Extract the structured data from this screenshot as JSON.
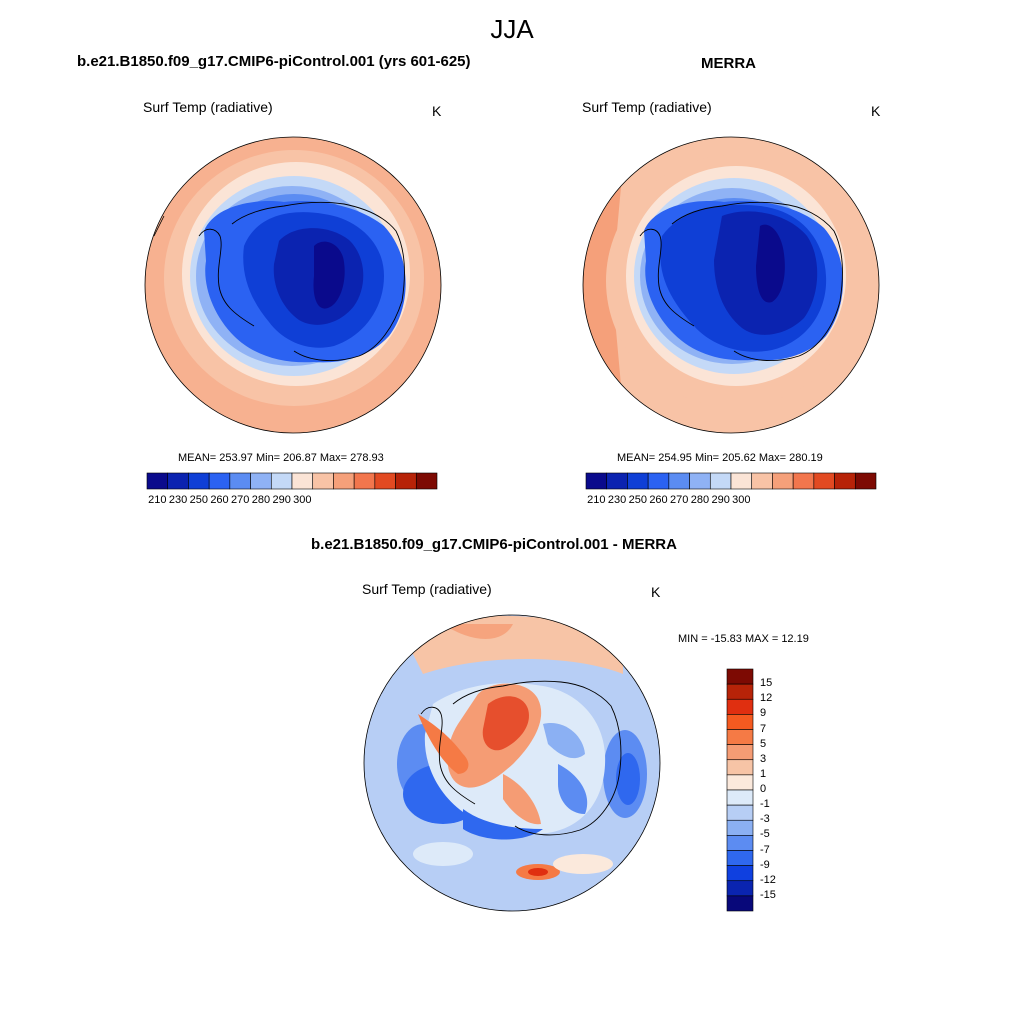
{
  "title": "JJA",
  "panels": {
    "model": {
      "title": "b.e21.B1850.f09_g17.CMIP6-piControl.001 (yrs 601-625)",
      "variable": "Surf Temp (radiative)",
      "units": "K",
      "stats": "MEAN= 253.97  Min= 206.87  Max= 278.93",
      "colorbar_ticks": [
        "210",
        "230",
        "250",
        "260",
        "270",
        "280",
        "290",
        "300"
      ]
    },
    "obs": {
      "title": "MERRA",
      "variable": "Surf Temp (radiative)",
      "units": "K",
      "stats": "MEAN= 254.95  Min= 205.62  Max= 280.19",
      "colorbar_ticks": [
        "210",
        "230",
        "250",
        "260",
        "270",
        "280",
        "290",
        "300"
      ]
    },
    "diff": {
      "title": "b.e21.B1850.f09_g17.CMIP6-piControl.001 - MERRA",
      "variable": "Surf Temp (radiative)",
      "units": "K",
      "stats": "MIN = -15.83 MAX =  12.19",
      "colorbar_ticks": [
        "15",
        "12",
        "9",
        "7",
        "5",
        "3",
        "1",
        "0",
        "-1",
        "-3",
        "-5",
        "-7",
        "-9",
        "-12",
        "-15"
      ]
    }
  },
  "colors": {
    "abs_scale": [
      "#0a0a8c",
      "#0b23b0",
      "#0f3fd6",
      "#2b62f2",
      "#5b8cf2",
      "#8fb2f5",
      "#c4d9f7",
      "#fbe4d6",
      "#f8c3a6",
      "#f5a07a",
      "#f2764d",
      "#e24a22",
      "#b72308",
      "#7d0a03"
    ],
    "diff_scale": [
      "#7d0a03",
      "#b72308",
      "#e02f10",
      "#f55a20",
      "#f57a45",
      "#f59c74",
      "#f7c4a6",
      "#fbe9dc",
      "#ddeaf9",
      "#b7cef5",
      "#8bb0f3",
      "#5c8cf2",
      "#2f68ef",
      "#0f40e0",
      "#0a24b0",
      "#08087a"
    ]
  }
}
